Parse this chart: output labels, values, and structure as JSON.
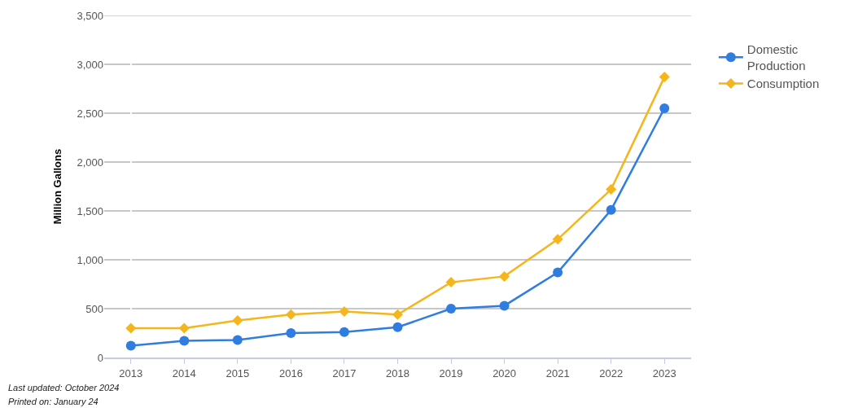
{
  "chart_data": {
    "type": "line",
    "ylabel": "Million Gallons",
    "categories": [
      "2013",
      "2014",
      "2015",
      "2016",
      "2017",
      "2018",
      "2019",
      "2020",
      "2021",
      "2022",
      "2023"
    ],
    "series": [
      {
        "name": "Domestic Production",
        "color": "#2f7de1",
        "marker": "circle",
        "values": [
          120,
          170,
          180,
          250,
          260,
          310,
          500,
          530,
          870,
          1510,
          2550
        ]
      },
      {
        "name": "Consumption",
        "color": "#f5b51c",
        "marker": "diamond",
        "values": [
          300,
          300,
          380,
          440,
          470,
          440,
          770,
          830,
          1210,
          1720,
          2870
        ]
      }
    ],
    "ylim": [
      0,
      3500
    ],
    "yticks": [
      {
        "value": 0,
        "label": "0"
      },
      {
        "value": 500,
        "label": "500"
      },
      {
        "value": 1000,
        "label": "1,000"
      },
      {
        "value": 1500,
        "label": "1,500"
      },
      {
        "value": 2000,
        "label": "2,000"
      },
      {
        "value": 2500,
        "label": "2,500"
      },
      {
        "value": 3000,
        "label": "3,000"
      },
      {
        "value": 3500,
        "label": "3,500"
      }
    ],
    "grid": "y",
    "legend": "top right",
    "line_style": "solid",
    "annotations": [
      "Last updated: October 2024",
      "Printed on: January 24"
    ]
  }
}
